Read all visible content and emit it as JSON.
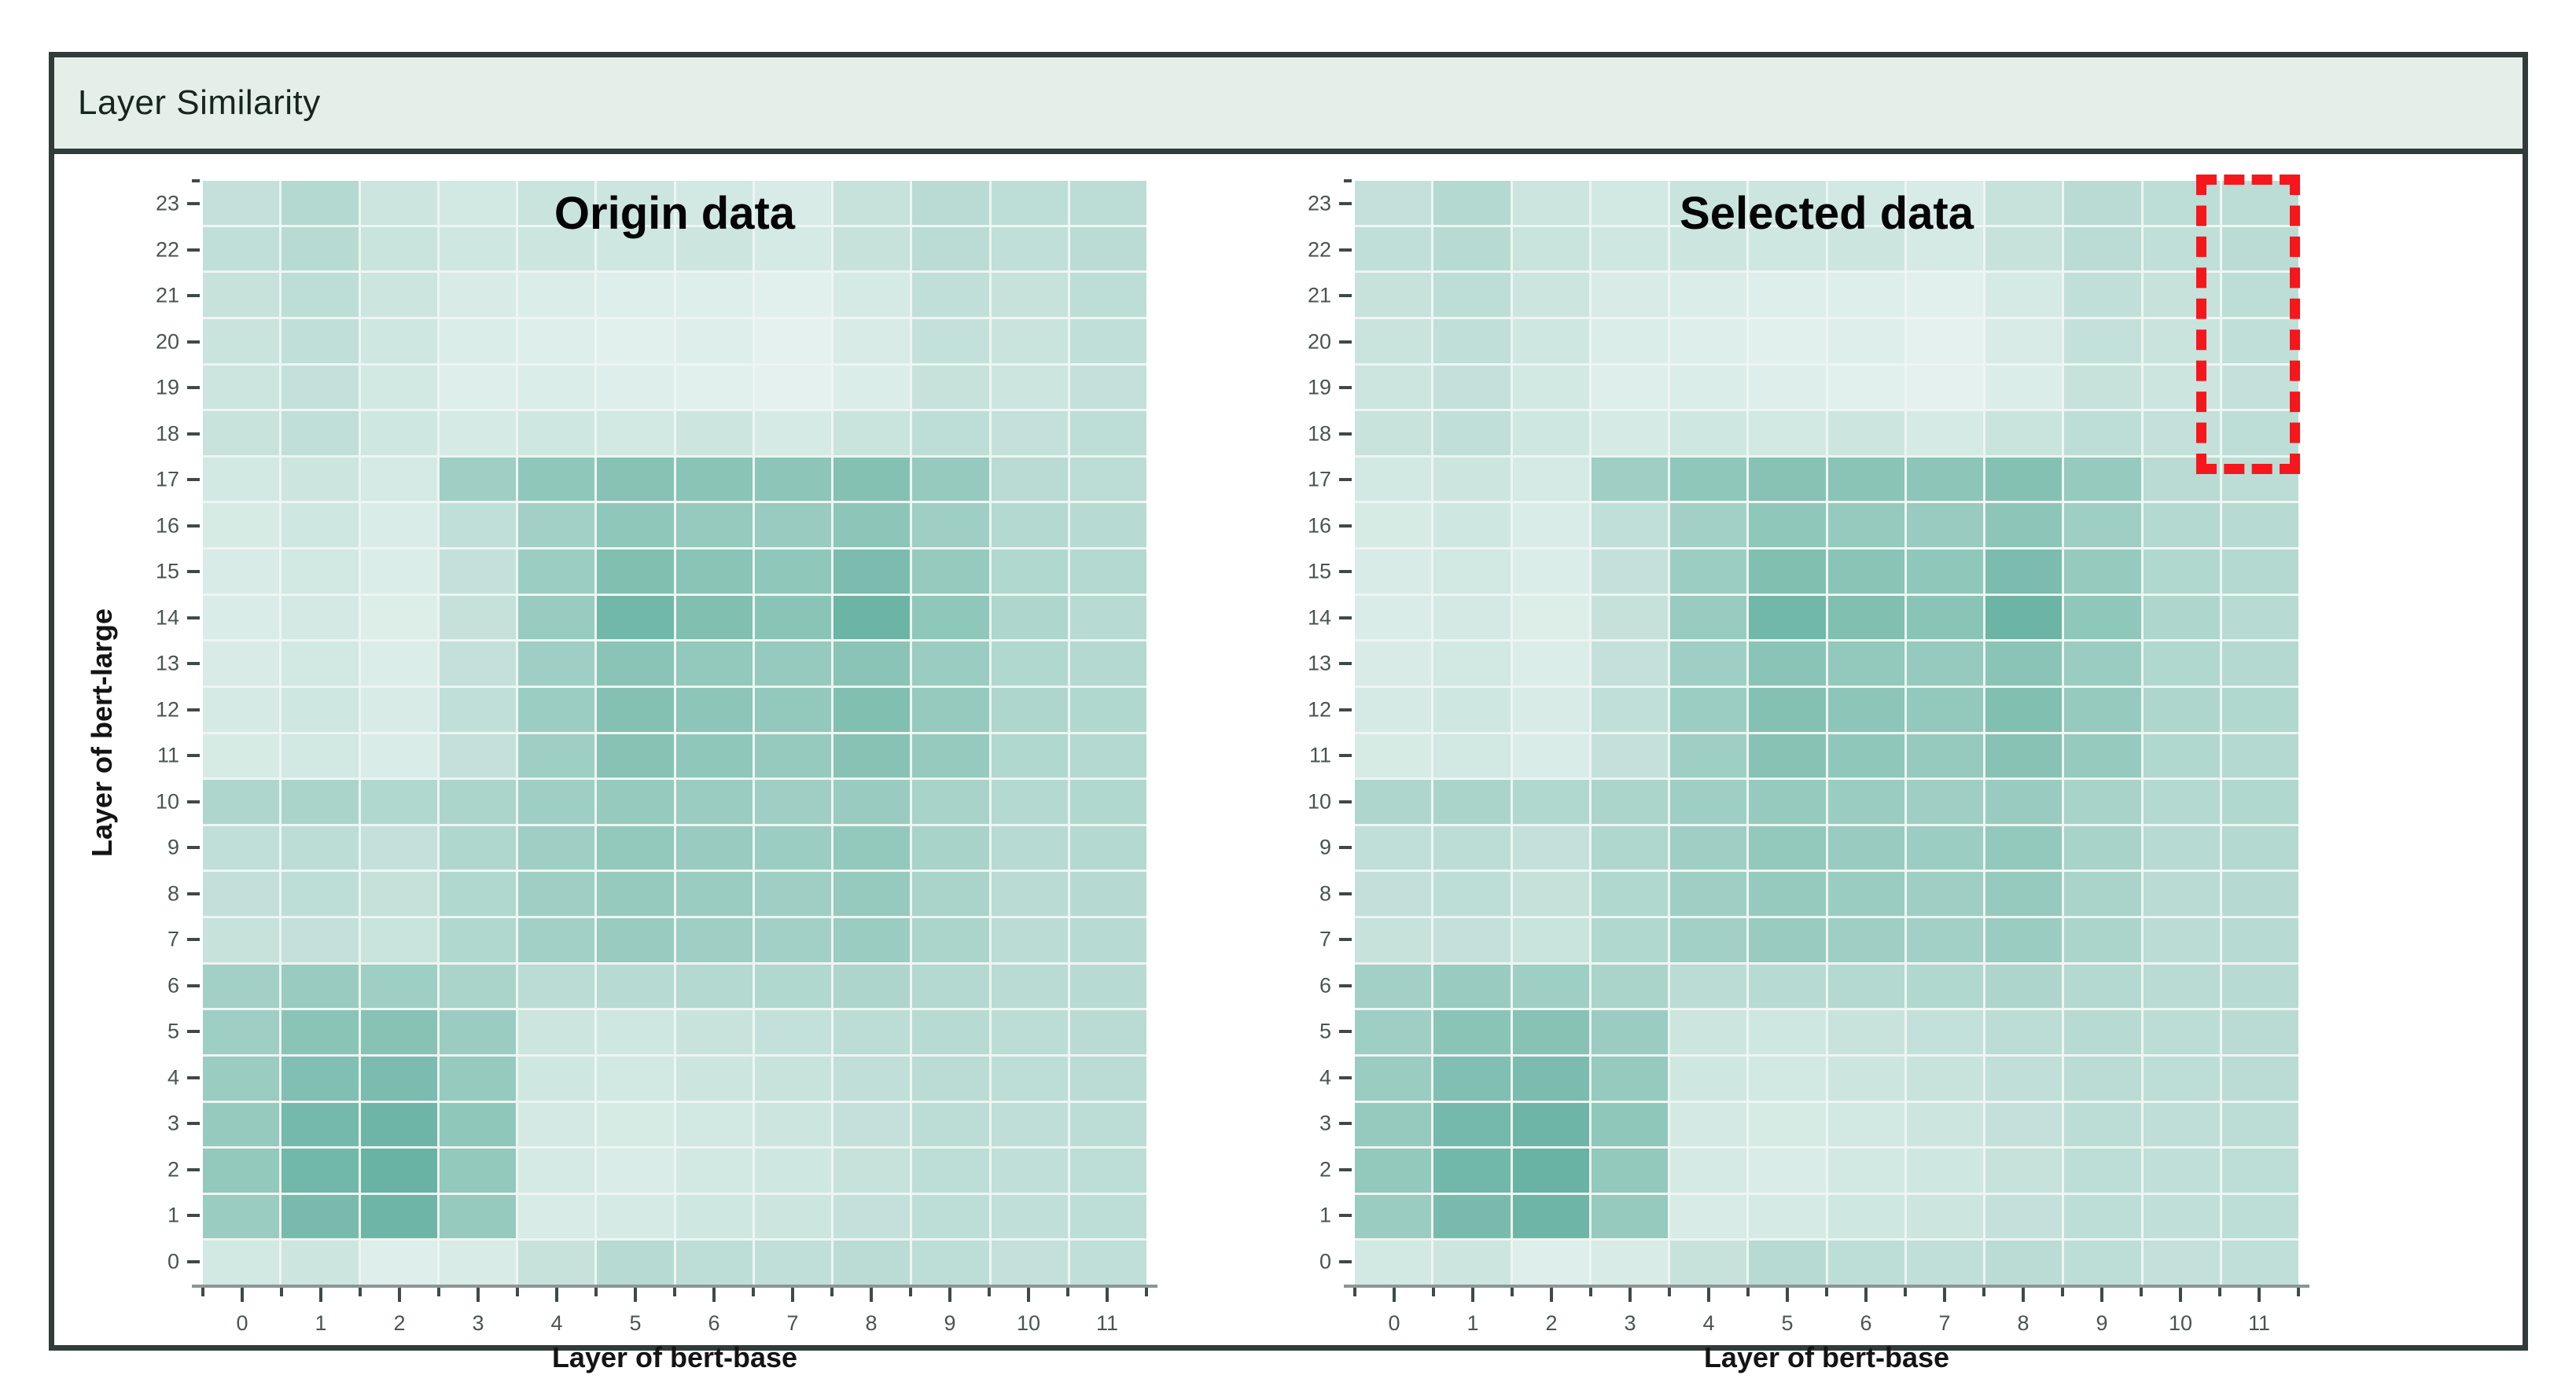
{
  "panel": {
    "title": "Layer Similarity",
    "titlebar_bg": "#e4efe9",
    "border_color": "#313c3a",
    "title_color": "#17251f"
  },
  "charts": [
    {
      "id": "origin",
      "title": "Origin data",
      "xlabel": "Layer of bert-base",
      "ylabel": "Layer of bert-large",
      "has_y_axis_title": true,
      "selection": null
    },
    {
      "id": "selected",
      "title": "Selected data",
      "xlabel": "Layer of bert-base",
      "ylabel": "Layer of bert-large",
      "has_y_axis_title": false,
      "selection": {
        "column": 11,
        "row_start": 18,
        "row_end": 23,
        "color": "#f5171c",
        "style": "dashed"
      }
    }
  ],
  "chart_data": {
    "type": "heatmap",
    "titles": [
      "Origin data",
      "Selected data"
    ],
    "xlabel": "Layer of bert-base",
    "ylabel": "Layer of bert-large",
    "x_categories": [
      0,
      1,
      2,
      3,
      4,
      5,
      6,
      7,
      8,
      9,
      10,
      11
    ],
    "y_categories": [
      0,
      1,
      2,
      3,
      4,
      5,
      6,
      7,
      8,
      9,
      10,
      11,
      12,
      13,
      14,
      15,
      16,
      17,
      18,
      19,
      20,
      21,
      22,
      23
    ],
    "value_range": [
      0,
      1
    ],
    "colormap": {
      "low_color": "#edf6f3",
      "high_color": "#57aa98"
    },
    "grid": true,
    "note": "Both heatmaps depict the same similarity matrix; the Selected data chart adds a red dashed selection around column 11, rows 18-23. Values are similarity estimates read from cell shading.",
    "values_by_layer": [
      [
        0.18,
        0.22,
        0.1,
        0.14,
        0.26,
        0.36,
        0.32,
        0.3,
        0.34,
        0.32,
        0.28,
        0.3
      ],
      [
        0.55,
        0.78,
        0.85,
        0.58,
        0.14,
        0.16,
        0.2,
        0.22,
        0.28,
        0.32,
        0.3,
        0.32
      ],
      [
        0.6,
        0.82,
        0.88,
        0.6,
        0.16,
        0.13,
        0.18,
        0.2,
        0.26,
        0.32,
        0.3,
        0.32
      ],
      [
        0.58,
        0.8,
        0.85,
        0.62,
        0.17,
        0.15,
        0.18,
        0.22,
        0.28,
        0.33,
        0.31,
        0.33
      ],
      [
        0.55,
        0.73,
        0.76,
        0.58,
        0.2,
        0.18,
        0.22,
        0.25,
        0.3,
        0.34,
        0.32,
        0.34
      ],
      [
        0.52,
        0.66,
        0.68,
        0.55,
        0.22,
        0.2,
        0.25,
        0.28,
        0.33,
        0.36,
        0.33,
        0.35
      ],
      [
        0.5,
        0.56,
        0.52,
        0.45,
        0.34,
        0.36,
        0.38,
        0.4,
        0.43,
        0.38,
        0.35,
        0.36
      ],
      [
        0.26,
        0.28,
        0.24,
        0.4,
        0.5,
        0.56,
        0.52,
        0.5,
        0.55,
        0.44,
        0.34,
        0.36
      ],
      [
        0.29,
        0.32,
        0.27,
        0.4,
        0.52,
        0.58,
        0.55,
        0.52,
        0.58,
        0.45,
        0.35,
        0.37
      ],
      [
        0.3,
        0.33,
        0.28,
        0.41,
        0.52,
        0.6,
        0.56,
        0.54,
        0.6,
        0.46,
        0.36,
        0.38
      ],
      [
        0.42,
        0.45,
        0.4,
        0.44,
        0.52,
        0.58,
        0.55,
        0.52,
        0.56,
        0.46,
        0.38,
        0.4
      ],
      [
        0.15,
        0.18,
        0.13,
        0.28,
        0.52,
        0.68,
        0.62,
        0.58,
        0.68,
        0.58,
        0.4,
        0.38
      ],
      [
        0.16,
        0.2,
        0.14,
        0.3,
        0.54,
        0.7,
        0.64,
        0.6,
        0.72,
        0.58,
        0.42,
        0.4
      ],
      [
        0.14,
        0.18,
        0.12,
        0.28,
        0.52,
        0.66,
        0.6,
        0.58,
        0.66,
        0.55,
        0.4,
        0.38
      ],
      [
        0.13,
        0.17,
        0.11,
        0.27,
        0.56,
        0.82,
        0.72,
        0.66,
        0.86,
        0.62,
        0.42,
        0.36
      ],
      [
        0.14,
        0.18,
        0.12,
        0.28,
        0.54,
        0.72,
        0.66,
        0.62,
        0.76,
        0.58,
        0.4,
        0.38
      ],
      [
        0.15,
        0.2,
        0.13,
        0.3,
        0.5,
        0.62,
        0.58,
        0.56,
        0.64,
        0.52,
        0.38,
        0.36
      ],
      [
        0.18,
        0.22,
        0.16,
        0.52,
        0.62,
        0.68,
        0.66,
        0.64,
        0.7,
        0.58,
        0.35,
        0.33
      ],
      [
        0.25,
        0.3,
        0.2,
        0.16,
        0.2,
        0.18,
        0.22,
        0.16,
        0.24,
        0.32,
        0.28,
        0.32
      ],
      [
        0.22,
        0.28,
        0.18,
        0.1,
        0.12,
        0.1,
        0.08,
        0.06,
        0.12,
        0.26,
        0.22,
        0.28
      ],
      [
        0.24,
        0.3,
        0.2,
        0.12,
        0.1,
        0.08,
        0.1,
        0.06,
        0.14,
        0.28,
        0.24,
        0.3
      ],
      [
        0.26,
        0.32,
        0.22,
        0.14,
        0.12,
        0.1,
        0.1,
        0.08,
        0.16,
        0.3,
        0.26,
        0.32
      ],
      [
        0.3,
        0.36,
        0.24,
        0.2,
        0.22,
        0.2,
        0.22,
        0.16,
        0.26,
        0.34,
        0.3,
        0.34
      ],
      [
        0.28,
        0.38,
        0.22,
        0.18,
        0.24,
        0.22,
        0.18,
        0.14,
        0.26,
        0.35,
        0.32,
        0.33
      ]
    ]
  }
}
